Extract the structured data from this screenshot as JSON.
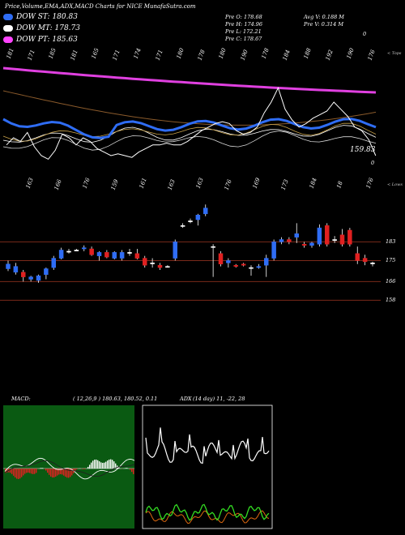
{
  "header": {
    "title": "Price,Volume,EMA,ADX,MACD Charts for NICE MunafaSutra.com"
  },
  "legend": [
    {
      "label": "DOW ST: 180.83",
      "color": "#2f6df5"
    },
    {
      "label": "DOW MT: 178.73",
      "color": "#ffffff"
    },
    {
      "label": "DOW PT: 185.63",
      "color": "#ff44ff"
    }
  ],
  "stats": {
    "prev_open": "Pre   O: 178.68",
    "prev_high": "Pre   H: 174.96",
    "prev_low": "Pre   L: 172.21",
    "prev_close": "Pre   C: 178.67",
    "avg_volume": "Avg V: 0.188  M",
    "prev_volume": "Pre   V: 0.314  M",
    "extra": "0"
  },
  "top_panel": {
    "top_labels": [
      "181",
      "171",
      "185",
      "181",
      "165",
      "171",
      "174",
      "171",
      "180",
      "178",
      "180",
      "190",
      "178",
      "184",
      "188",
      "192",
      "190",
      "176"
    ],
    "bottom_labels": [
      "163",
      "166",
      "176",
      "159",
      "161",
      "163",
      "163",
      "176",
      "169",
      "173",
      "184",
      "18",
      "176"
    ],
    "price_label": "159.83",
    "extra_label": "0",
    "upper_tag": "< Tops",
    "lower_tag": "< Lows"
  },
  "chart_data": {
    "type": "candlestick",
    "levels": [
      {
        "label": "183",
        "value": 183
      },
      {
        "label": "175",
        "value": 175
      },
      {
        "label": "166",
        "value": 166
      },
      {
        "label": "158",
        "value": 158
      }
    ],
    "ylim": [
      146,
      205
    ],
    "candles": [
      {
        "o": 171.5,
        "c": 173.5,
        "h": 175.0,
        "l": 170.5
      },
      {
        "o": 170.0,
        "c": 172.5,
        "h": 174.0,
        "l": 169.0
      },
      {
        "o": 170.0,
        "c": 168.0,
        "h": 171.0,
        "l": 166.0
      },
      {
        "o": 167.0,
        "c": 168.0,
        "h": 168.5,
        "l": 166.0
      },
      {
        "o": 166.5,
        "c": 168.5,
        "h": 169.0,
        "l": 165.5
      },
      {
        "o": 169.0,
        "c": 171.5,
        "h": 172.0,
        "l": 167.0
      },
      {
        "o": 172.0,
        "c": 176.0,
        "h": 177.0,
        "l": 171.0
      },
      {
        "o": 176.0,
        "c": 179.5,
        "h": 180.5,
        "l": 175.5
      },
      {
        "o": 179.0,
        "c": 179.0,
        "h": 180.0,
        "l": 178.0
      },
      {
        "o": 179.5,
        "c": 179.5,
        "h": 180.0,
        "l": 179.0
      },
      {
        "o": 180.0,
        "c": 180.5,
        "h": 181.5,
        "l": 179.0
      },
      {
        "o": 180.0,
        "c": 177.5,
        "h": 181.0,
        "l": 177.0
      },
      {
        "o": 177.0,
        "c": 178.5,
        "h": 179.0,
        "l": 175.0
      },
      {
        "o": 178.5,
        "c": 176.5,
        "h": 179.5,
        "l": 176.0
      },
      {
        "o": 176.0,
        "c": 178.5,
        "h": 179.0,
        "l": 175.5
      },
      {
        "o": 176.0,
        "c": 178.5,
        "h": 179.5,
        "l": 175.0
      },
      {
        "o": 178.5,
        "c": 178.5,
        "h": 180.0,
        "l": 177.0
      },
      {
        "o": 178.0,
        "c": 176.0,
        "h": 180.0,
        "l": 175.5
      },
      {
        "o": 176.0,
        "c": 173.0,
        "h": 177.0,
        "l": 172.0
      },
      {
        "o": 174.0,
        "c": 174.0,
        "h": 176.0,
        "l": 172.0
      },
      {
        "o": 173.0,
        "c": 172.0,
        "h": 174.0,
        "l": 171.0
      },
      {
        "o": 172.5,
        "c": 172.5,
        "h": 173.0,
        "l": 172.0
      },
      {
        "o": 176.0,
        "c": 183.0,
        "h": 184.0,
        "l": 175.0
      },
      {
        "o": 190.0,
        "c": 190.0,
        "h": 191.0,
        "l": 189.0
      },
      {
        "o": 192.0,
        "c": 192.0,
        "h": 193.0,
        "l": 191.0
      },
      {
        "o": 192.5,
        "c": 194.5,
        "h": 195.0,
        "l": 190.0
      },
      {
        "o": 195.0,
        "c": 197.5,
        "h": 199.0,
        "l": 194.0
      },
      {
        "o": 181.0,
        "c": 181.0,
        "h": 182.0,
        "l": 168.0
      },
      {
        "o": 178.0,
        "c": 173.5,
        "h": 179.0,
        "l": 172.5
      },
      {
        "o": 174.0,
        "c": 175.0,
        "h": 176.0,
        "l": 172.0
      },
      {
        "o": 173.0,
        "c": 172.5,
        "h": 173.5,
        "l": 172.0
      },
      {
        "o": 173.5,
        "c": 173.0,
        "h": 174.0,
        "l": 172.5
      },
      {
        "o": 172.0,
        "c": 172.0,
        "h": 173.0,
        "l": 168.5
      },
      {
        "o": 172.0,
        "c": 172.5,
        "h": 173.5,
        "l": 171.5
      },
      {
        "o": 173.0,
        "c": 176.0,
        "h": 177.5,
        "l": 168.0
      },
      {
        "o": 176.0,
        "c": 183.0,
        "h": 184.0,
        "l": 175.0
      },
      {
        "o": 183.0,
        "c": 184.0,
        "h": 185.0,
        "l": 182.0
      },
      {
        "o": 184.0,
        "c": 183.0,
        "h": 185.0,
        "l": 182.0
      },
      {
        "o": 185.0,
        "c": 186.5,
        "h": 191.0,
        "l": 182.5
      },
      {
        "o": 182.0,
        "c": 181.5,
        "h": 183.0,
        "l": 180.5
      },
      {
        "o": 181.5,
        "c": 182.5,
        "h": 183.0,
        "l": 180.5
      },
      {
        "o": 182.0,
        "c": 189.0,
        "h": 190.5,
        "l": 181.0
      },
      {
        "o": 190.0,
        "c": 182.0,
        "h": 191.0,
        "l": 181.0
      },
      {
        "o": 184.0,
        "c": 184.0,
        "h": 185.5,
        "l": 182.5
      },
      {
        "o": 186.0,
        "c": 182.0,
        "h": 188.5,
        "l": 181.0
      },
      {
        "o": 188.0,
        "c": 182.0,
        "h": 189.0,
        "l": 181.0
      },
      {
        "o": 178.0,
        "c": 175.0,
        "h": 181.0,
        "l": 173.5
      },
      {
        "o": 176.0,
        "c": 174.5,
        "h": 177.5,
        "l": 173.0
      },
      {
        "o": 174.0,
        "c": 174.0,
        "h": 174.5,
        "l": 172.5
      }
    ],
    "price_line": [
      166,
      170,
      168,
      173,
      165,
      160,
      158,
      163,
      172,
      170,
      166,
      170,
      168,
      164,
      162,
      160,
      161,
      160,
      159,
      162,
      164,
      166,
      166,
      167,
      166,
      166,
      168,
      171,
      174,
      176,
      178,
      179,
      178,
      174,
      172,
      173,
      176,
      184,
      190,
      198,
      186,
      180,
      176,
      178,
      181,
      183,
      185,
      190,
      186,
      182,
      176,
      174,
      169,
      160
    ]
  },
  "macd_panel": {
    "label": "MACD:",
    "values": "( 12,26,9 ) 180.63,  180.52,  0.11"
  },
  "adx_panel": {
    "label": "ADX",
    "values": "(14  day) 11,  -22,  28"
  }
}
